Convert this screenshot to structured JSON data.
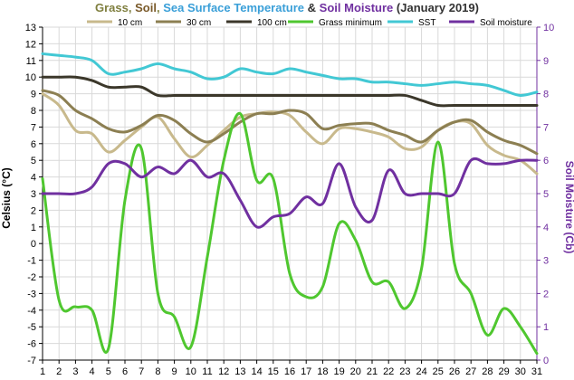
{
  "chart_data": {
    "type": "line",
    "title_parts": [
      {
        "text": "Grass",
        "color": "#7f7f3f"
      },
      {
        "text": ", ",
        "color": "#7f7f3f"
      },
      {
        "text": "Soil",
        "color": "#7a5a2a"
      },
      {
        "text": ", ",
        "color": "#7f7f3f"
      },
      {
        "text": "Sea Surface Temperature",
        "color": "#3a9fd8"
      },
      {
        "text": " & ",
        "color": "#333333"
      },
      {
        "text": "Soil Moisture",
        "color": "#7030a0"
      },
      {
        "text": " (January 2019)",
        "color": "#333333"
      }
    ],
    "xlabel": "",
    "ylabel": "Celsius (°C)",
    "y2label": "Soil Moisture (Cb)",
    "ylim": [
      -7,
      13
    ],
    "y2lim": [
      0,
      10
    ],
    "grid": true,
    "legend_position": "top",
    "x": [
      1,
      2,
      3,
      4,
      5,
      6,
      7,
      8,
      9,
      10,
      11,
      12,
      13,
      14,
      15,
      16,
      17,
      18,
      19,
      20,
      21,
      22,
      23,
      24,
      25,
      26,
      27,
      28,
      29,
      30,
      31
    ],
    "series": [
      {
        "name": "10 cm",
        "axis": "left",
        "color": "#c8b98c",
        "values": [
          9.0,
          8.3,
          6.8,
          6.6,
          5.5,
          6.2,
          7.0,
          7.6,
          6.3,
          5.2,
          5.9,
          6.8,
          7.6,
          7.8,
          7.9,
          7.7,
          6.7,
          6.0,
          6.9,
          6.9,
          6.7,
          6.4,
          5.7,
          5.8,
          6.8,
          7.3,
          7.2,
          5.9,
          5.3,
          5.0,
          4.2
        ]
      },
      {
        "name": "30 cm",
        "axis": "left",
        "color": "#8c7f52",
        "values": [
          9.2,
          8.9,
          8.0,
          7.5,
          6.9,
          6.7,
          7.1,
          7.7,
          7.4,
          6.6,
          6.1,
          6.6,
          7.3,
          7.8,
          7.8,
          8.0,
          7.8,
          6.9,
          7.1,
          7.2,
          7.2,
          6.8,
          6.5,
          6.1,
          6.8,
          7.3,
          7.4,
          6.7,
          6.2,
          5.9,
          5.4
        ]
      },
      {
        "name": "100 cm",
        "axis": "left",
        "color": "#3b372a",
        "values": [
          10.0,
          10.0,
          10.0,
          9.8,
          9.4,
          9.4,
          9.4,
          8.9,
          8.9,
          8.9,
          8.9,
          8.9,
          8.9,
          8.9,
          8.9,
          8.9,
          8.9,
          8.9,
          8.9,
          8.9,
          8.9,
          8.9,
          8.9,
          8.6,
          8.3,
          8.3,
          8.3,
          8.3,
          8.3,
          8.3,
          8.3
        ]
      },
      {
        "name": "Grass minimum",
        "axis": "left",
        "color": "#4fc72f",
        "values": [
          3.9,
          -3.4,
          -3.8,
          -4.0,
          -6.3,
          2.6,
          5.7,
          -3.0,
          -4.4,
          -6.2,
          -0.8,
          5.0,
          7.8,
          3.8,
          3.9,
          -1.8,
          -3.2,
          -2.6,
          1.2,
          0.2,
          -2.3,
          -2.3,
          -3.9,
          -1.5,
          6.1,
          -1.2,
          -3.0,
          -5.5,
          -3.9,
          -5.0,
          -6.6
        ]
      },
      {
        "name": "SST",
        "axis": "left",
        "color": "#42c8d4",
        "values": [
          11.4,
          11.3,
          11.2,
          11.0,
          10.2,
          10.3,
          10.5,
          10.8,
          10.5,
          10.3,
          9.9,
          10.0,
          10.5,
          10.3,
          10.2,
          10.5,
          10.3,
          10.1,
          9.9,
          9.9,
          9.7,
          9.7,
          9.6,
          9.5,
          9.6,
          9.7,
          9.6,
          9.5,
          9.2,
          8.9,
          9.1
        ]
      },
      {
        "name": "Soil moisture",
        "axis": "right",
        "color": "#7030a0",
        "values": [
          5.0,
          5.0,
          5.0,
          5.2,
          5.9,
          5.9,
          5.5,
          5.8,
          5.6,
          6.0,
          5.5,
          5.6,
          4.8,
          4.0,
          4.3,
          4.4,
          4.9,
          4.7,
          5.9,
          4.6,
          4.2,
          5.7,
          5.0,
          5.0,
          5.0,
          5.0,
          6.0,
          5.9,
          5.9,
          6.0,
          6.0
        ]
      }
    ],
    "yticks": [
      -7,
      -6,
      -5,
      -4,
      -3,
      -2,
      -1,
      0,
      1,
      2,
      3,
      4,
      5,
      6,
      7,
      8,
      9,
      10,
      11,
      12,
      13
    ],
    "y2ticks": [
      0,
      1,
      2,
      3,
      4,
      5,
      6,
      7,
      8,
      9,
      10
    ]
  }
}
